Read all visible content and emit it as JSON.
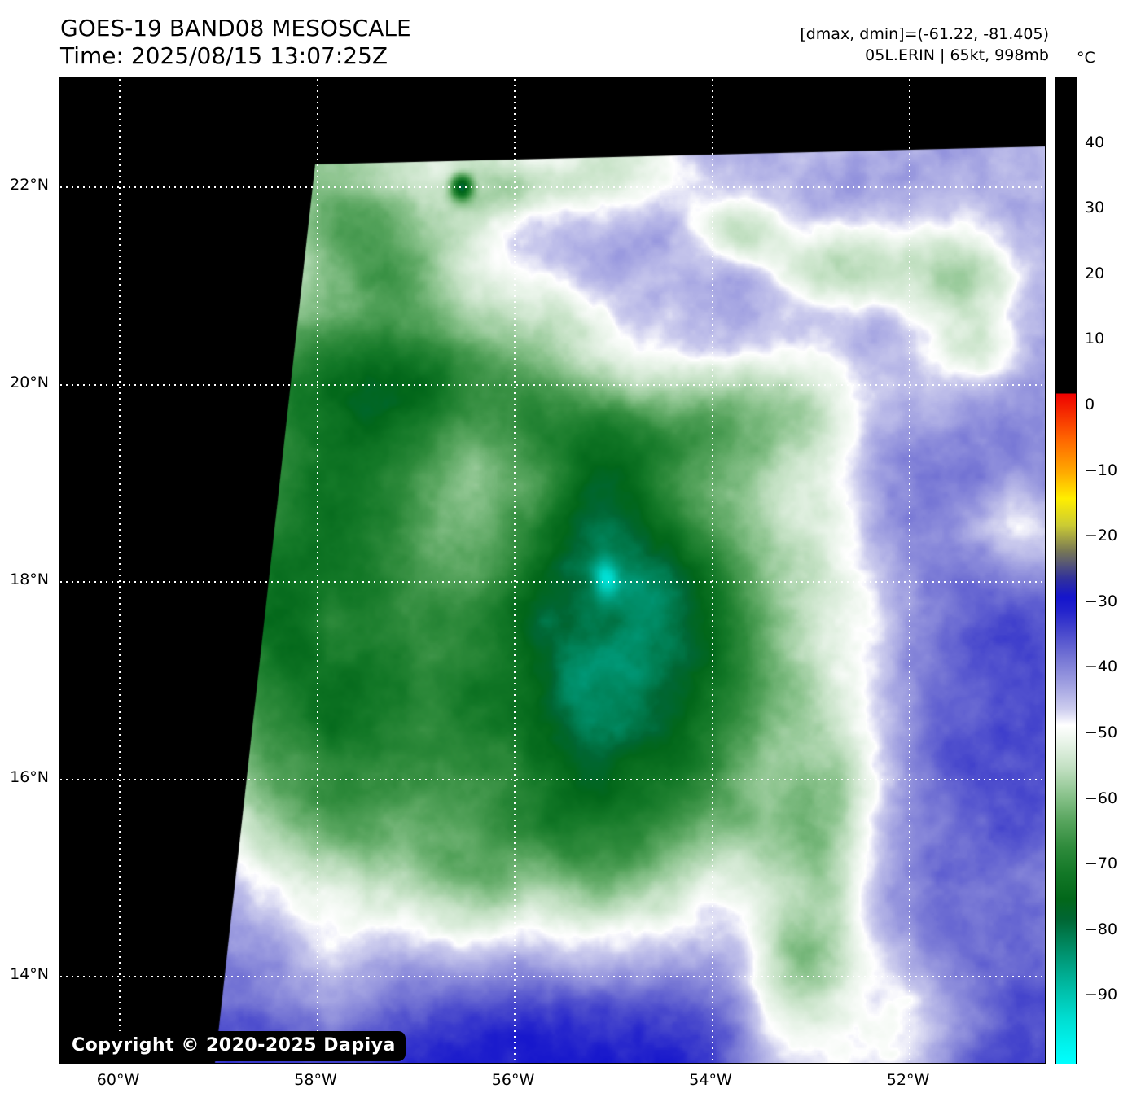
{
  "header": {
    "title": "GOES-19 BAND08 MESOSCALE",
    "time": "Time: 2025/08/15 13:07:25Z",
    "range_info": "[dmax, dmin]=(-61.22, -81.405)",
    "storm_info": "05L.ERIN | 65kt, 998mb"
  },
  "colorbar": {
    "unit": "°C",
    "value_max": 50,
    "value_min": -100,
    "ticks": [
      {
        "label": "40",
        "value": 40
      },
      {
        "label": "30",
        "value": 30
      },
      {
        "label": "20",
        "value": 20
      },
      {
        "label": "10",
        "value": 10
      },
      {
        "label": "0",
        "value": 0
      },
      {
        "label": "−10",
        "value": -10
      },
      {
        "label": "−20",
        "value": -20
      },
      {
        "label": "−30",
        "value": -30
      },
      {
        "label": "−40",
        "value": -40
      },
      {
        "label": "−50",
        "value": -50
      },
      {
        "label": "−60",
        "value": -60
      },
      {
        "label": "−70",
        "value": -70
      },
      {
        "label": "−80",
        "value": -80
      },
      {
        "label": "−90",
        "value": -90
      }
    ],
    "stops": [
      {
        "v": 50,
        "c": "#000000"
      },
      {
        "v": 2.01,
        "c": "#000000"
      },
      {
        "v": 2,
        "c": "#ee0000"
      },
      {
        "v": -5,
        "c": "#ff6600"
      },
      {
        "v": -10,
        "c": "#ffaa00"
      },
      {
        "v": -14,
        "c": "#ffee00"
      },
      {
        "v": -18,
        "c": "#cccc33"
      },
      {
        "v": -22,
        "c": "#777755"
      },
      {
        "v": -26,
        "c": "#333399"
      },
      {
        "v": -29,
        "c": "#1414cc"
      },
      {
        "v": -31,
        "c": "#2222cc"
      },
      {
        "v": -34,
        "c": "#4444cc"
      },
      {
        "v": -38,
        "c": "#7272d4"
      },
      {
        "v": -42,
        "c": "#9d9de0"
      },
      {
        "v": -46,
        "c": "#ccccee"
      },
      {
        "v": -48.5,
        "c": "#ffffff"
      },
      {
        "v": -51,
        "c": "#e9f4e9"
      },
      {
        "v": -55,
        "c": "#c2e0c2"
      },
      {
        "v": -59,
        "c": "#8cc48e"
      },
      {
        "v": -63,
        "c": "#58a55e"
      },
      {
        "v": -67,
        "c": "#2f8b3c"
      },
      {
        "v": -71,
        "c": "#137827"
      },
      {
        "v": -75,
        "c": "#02671a"
      },
      {
        "v": -78,
        "c": "#006633"
      },
      {
        "v": -81,
        "c": "#008055"
      },
      {
        "v": -85,
        "c": "#00a082"
      },
      {
        "v": -89,
        "c": "#00c0ab"
      },
      {
        "v": -93,
        "c": "#00dcd0"
      },
      {
        "v": -97,
        "c": "#00f2ec"
      },
      {
        "v": -100,
        "c": "#00ffff"
      }
    ]
  },
  "map": {
    "lat_ticks": [
      {
        "label": "22°N",
        "lat": 22
      },
      {
        "label": "20°N",
        "lat": 20
      },
      {
        "label": "18°N",
        "lat": 18
      },
      {
        "label": "16°N",
        "lat": 16
      },
      {
        "label": "14°N",
        "lat": 14
      }
    ],
    "lon_ticks": [
      {
        "label": "60°W",
        "lon": 60
      },
      {
        "label": "58°W",
        "lon": 58
      },
      {
        "label": "56°W",
        "lon": 56
      },
      {
        "label": "54°W",
        "lon": 54
      },
      {
        "label": "52°W",
        "lon": 52
      }
    ],
    "copyright": "Copyright © 2020-2025 Dapiya"
  }
}
